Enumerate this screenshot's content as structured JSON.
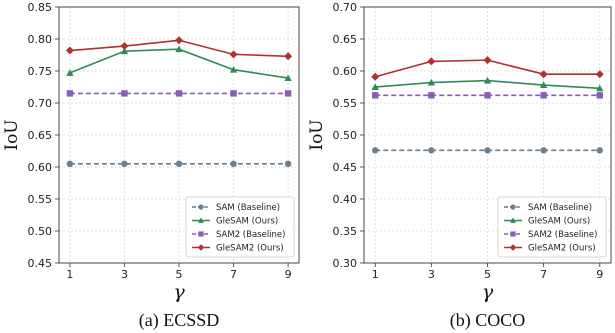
{
  "chart_data": [
    {
      "type": "line",
      "caption": "(a) ECSSD",
      "xlabel": "γ",
      "ylabel": "IoU",
      "x": [
        1,
        3,
        5,
        7,
        9
      ],
      "ylim": [
        0.45,
        0.85
      ],
      "yticks": [
        "0.45",
        "0.50",
        "0.55",
        "0.60",
        "0.65",
        "0.70",
        "0.75",
        "0.80",
        "0.85"
      ],
      "xticks": [
        "1",
        "3",
        "5",
        "7",
        "9"
      ],
      "grid": true,
      "legend_position": "bottom-right",
      "series": [
        {
          "name": "SAM (Baseline)",
          "values": [
            0.605,
            0.605,
            0.605,
            0.605,
            0.605
          ],
          "color": "#6b7f8f",
          "marker": "circle",
          "dashed": true
        },
        {
          "name": "GleSAM (Ours)",
          "values": [
            0.747,
            0.781,
            0.784,
            0.752,
            0.739
          ],
          "color": "#2e8b57",
          "marker": "triangle",
          "dashed": false
        },
        {
          "name": "SAM2 (Baseline)",
          "values": [
            0.715,
            0.715,
            0.715,
            0.715,
            0.715
          ],
          "color": "#8a5cb8",
          "marker": "square",
          "dashed": true
        },
        {
          "name": "GleSAM2 (Ours)",
          "values": [
            0.782,
            0.789,
            0.798,
            0.776,
            0.773
          ],
          "color": "#b03030",
          "marker": "diamond",
          "dashed": false
        }
      ]
    },
    {
      "type": "line",
      "caption": "(b) COCO",
      "xlabel": "γ",
      "ylabel": "IoU",
      "x": [
        1,
        3,
        5,
        7,
        9
      ],
      "ylim": [
        0.3,
        0.7
      ],
      "yticks": [
        "0.30",
        "0.35",
        "0.40",
        "0.45",
        "0.50",
        "0.55",
        "0.60",
        "0.65",
        "0.70"
      ],
      "xticks": [
        "1",
        "3",
        "5",
        "7",
        "9"
      ],
      "grid": true,
      "legend_position": "bottom-right",
      "series": [
        {
          "name": "SAM (Baseline)",
          "values": [
            0.476,
            0.476,
            0.476,
            0.476,
            0.476
          ],
          "color": "#6b7f8f",
          "marker": "circle",
          "dashed": true
        },
        {
          "name": "GleSAM (Ours)",
          "values": [
            0.575,
            0.582,
            0.585,
            0.578,
            0.573
          ],
          "color": "#2e8b57",
          "marker": "triangle",
          "dashed": false
        },
        {
          "name": "SAM2 (Baseline)",
          "values": [
            0.562,
            0.562,
            0.562,
            0.562,
            0.562
          ],
          "color": "#8a5cb8",
          "marker": "square",
          "dashed": true
        },
        {
          "name": "GleSAM2 (Ours)",
          "values": [
            0.591,
            0.615,
            0.617,
            0.595,
            0.595
          ],
          "color": "#b03030",
          "marker": "diamond",
          "dashed": false
        }
      ]
    }
  ]
}
